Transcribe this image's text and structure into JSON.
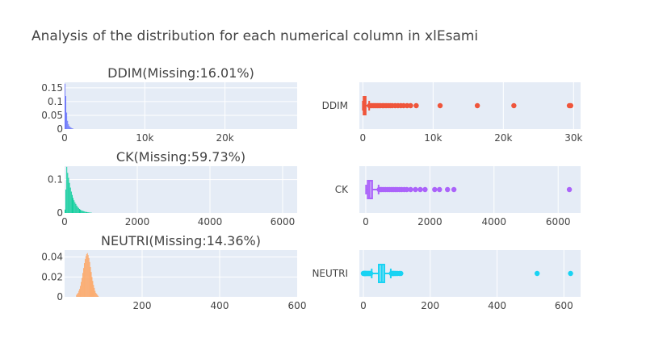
{
  "title": "Analysis of the distribution for each numerical column in xlEsami",
  "chart_data": [
    {
      "type": "histogram",
      "title": "DDIM(Missing:16.01%)",
      "color": "#636efa",
      "xlim": [
        0,
        29000
      ],
      "ylim": [
        0,
        0.17
      ],
      "xticks": [
        0,
        10000,
        20000
      ],
      "xtick_labels": [
        "0",
        "10k",
        "20k"
      ],
      "yticks": [
        0,
        0.05,
        0.1,
        0.15
      ],
      "ytick_labels": [
        "0",
        "0.05",
        "0.1",
        "0.15"
      ],
      "bin_width": 110,
      "bins_start": 0,
      "density": [
        0.165,
        0.12,
        0.06,
        0.03,
        0.018,
        0.011,
        0.007,
        0.005,
        0.003,
        0.002
      ]
    },
    {
      "type": "box",
      "title": "",
      "category": "DDIM",
      "color": "#ef553b",
      "xlim": [
        -500,
        31000
      ],
      "xticks": [
        0,
        10000,
        20000,
        30000
      ],
      "xtick_labels": [
        "0",
        "10k",
        "20k",
        "30k"
      ],
      "min": 0,
      "q1": 100,
      "median": 200,
      "q3": 400,
      "whisker_high": 900,
      "outliers": [
        950,
        1100,
        1300,
        1500,
        1700,
        1900,
        2100,
        2300,
        2500,
        2800,
        3000,
        3300,
        3600,
        3900,
        4200,
        4600,
        5000,
        5400,
        5800,
        6300,
        6800,
        7600,
        11000,
        16300,
        21500,
        29400,
        29600
      ]
    },
    {
      "type": "histogram",
      "title": "CK(Missing:59.73%)",
      "color": "#00cc96",
      "xlim": [
        0,
        6400
      ],
      "ylim": [
        0,
        0.14
      ],
      "xticks": [
        0,
        2000,
        4000,
        6000
      ],
      "xtick_labels": [
        "0",
        "2000",
        "4000",
        "6000"
      ],
      "yticks": [
        0,
        0.1
      ],
      "ytick_labels": [
        "0",
        "0.1"
      ],
      "bin_width": 25,
      "bins_start": 0,
      "density": [
        0.01,
        0.07,
        0.138,
        0.12,
        0.105,
        0.09,
        0.076,
        0.064,
        0.054,
        0.045,
        0.038,
        0.032,
        0.027,
        0.022,
        0.018,
        0.015,
        0.012,
        0.01,
        0.008,
        0.007,
        0.006,
        0.005,
        0.004,
        0.003,
        0.003,
        0.002,
        0.002,
        0.0015,
        0.001,
        0.001
      ]
    },
    {
      "type": "box",
      "title": "",
      "category": "CK",
      "color": "#ab63fa",
      "xlim": [
        -200,
        6700
      ],
      "xticks": [
        0,
        2000,
        4000,
        6000
      ],
      "xtick_labels": [
        "0",
        "2000",
        "4000",
        "6000"
      ],
      "min": 10,
      "q1": 60,
      "median": 110,
      "q3": 200,
      "whisker_high": 400,
      "outliers": [
        420,
        460,
        500,
        560,
        620,
        680,
        740,
        800,
        860,
        920,
        980,
        1050,
        1120,
        1200,
        1280,
        1400,
        1550,
        1700,
        1850,
        2150,
        2300,
        2550,
        2750,
        6350
      ]
    },
    {
      "type": "histogram",
      "title": "NEUTRI(Missing:14.36%)",
      "color": "#ffa15a",
      "xlim": [
        0,
        600
      ],
      "ylim": [
        0,
        0.047
      ],
      "xticks": [
        200,
        400,
        600
      ],
      "xtick_labels": [
        "200",
        "400",
        "600"
      ],
      "yticks": [
        0,
        0.02,
        0.04
      ],
      "ytick_labels": [
        "0",
        "0.02",
        "0.04"
      ],
      "bin_width": 2,
      "bins_start": 30,
      "density": [
        0.002,
        0.003,
        0.004,
        0.006,
        0.008,
        0.011,
        0.015,
        0.019,
        0.024,
        0.029,
        0.034,
        0.038,
        0.041,
        0.043,
        0.044,
        0.042,
        0.039,
        0.035,
        0.03,
        0.025,
        0.02,
        0.016,
        0.012,
        0.009,
        0.006,
        0.004,
        0.003,
        0.002,
        0.001
      ]
    },
    {
      "type": "box",
      "title": "",
      "category": "NEUTRI",
      "color": "#19d3f3",
      "xlim": [
        -12,
        650
      ],
      "xticks": [
        0,
        200,
        400,
        600
      ],
      "xtick_labels": [
        "0",
        "200",
        "400",
        "600"
      ],
      "min": 25,
      "q1": 46,
      "median": 55,
      "q3": 63,
      "whisker_high": 82,
      "outliers": [
        0,
        1,
        2,
        3,
        4,
        5,
        6,
        7,
        8,
        10,
        12,
        14,
        16,
        18,
        20,
        22,
        84,
        86,
        88,
        90,
        92,
        95,
        98,
        102,
        108,
        112,
        520,
        620
      ]
    }
  ]
}
